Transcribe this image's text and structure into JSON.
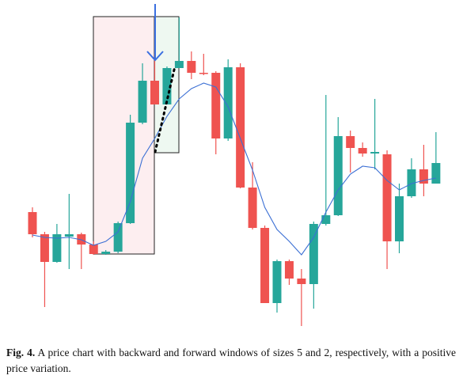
{
  "chart_data": {
    "type": "candlestick",
    "open": [
      152,
      124,
      89,
      121,
      124,
      111,
      99,
      102,
      138,
      265,
      318,
      288,
      334,
      343,
      328,
      328,
      245,
      335,
      183,
      132,
      37,
      90,
      68,
      61,
      137,
      148,
      248,
      233,
      226,
      225,
      115,
      172,
      206,
      188
    ],
    "high": [
      158,
      127,
      137,
      175,
      126,
      115,
      104,
      140,
      275,
      340,
      352,
      336,
      398,
      355,
      352,
      330,
      345,
      340,
      215,
      135,
      92,
      92,
      80,
      140,
      300,
      272,
      255,
      240,
      295,
      230,
      188,
      220,
      237,
      253
    ],
    "low": [
      120,
      32,
      88,
      80,
      80,
      98,
      98,
      100,
      137,
      263,
      288,
      288,
      334,
      320,
      325,
      225,
      242,
      182,
      130,
      37,
      25,
      60,
      8,
      30,
      135,
      147,
      202,
      222,
      206,
      80,
      100,
      170,
      172,
      188
    ],
    "close": [
      124,
      89,
      124,
      124,
      111,
      99,
      102,
      138,
      265,
      318,
      288,
      334,
      343,
      328,
      327,
      245,
      335,
      183,
      132,
      37,
      90,
      68,
      61,
      137,
      148,
      248,
      233,
      226,
      228,
      115,
      172,
      206,
      188,
      214
    ],
    "up_color": "#26a69a",
    "down_color": "#ef5350",
    "ma": {
      "color": "#3b6fd4",
      "values": [
        123,
        120,
        119,
        120,
        117,
        110,
        115,
        127,
        165,
        220,
        245,
        273,
        295,
        308,
        315,
        310,
        285,
        245,
        205,
        158,
        130,
        115,
        98,
        120,
        152,
        180,
        200,
        210,
        208,
        192,
        180,
        188,
        192,
        195
      ]
    },
    "ylim": [
      0,
      400
    ]
  },
  "caption": {
    "label": "Fig. 4.",
    "text": "A price chart with backward and forward windows of sizes 5 and 2, respectively, with a positive price variation."
  }
}
